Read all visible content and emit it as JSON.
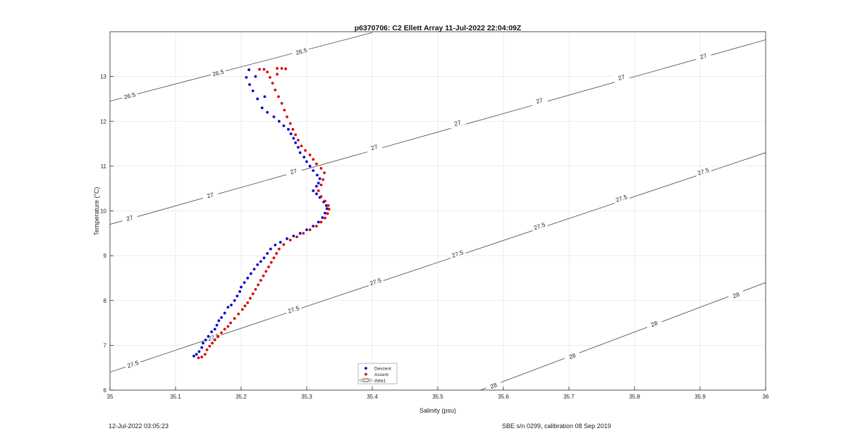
{
  "chart_data": {
    "type": "scatter",
    "title": "p6370706: C2 Ellett Array 11-Jul-2022 22:04:09Z",
    "xlabel": "Salinity (psu)",
    "ylabel": "Temperature (°C)",
    "xlim": [
      35,
      36
    ],
    "ylim": [
      6,
      14
    ],
    "xticks": [
      35,
      35.1,
      35.2,
      35.3,
      35.4,
      35.5,
      35.6,
      35.7,
      35.8,
      35.9,
      36
    ],
    "xtick_labels": [
      "35",
      "35.1",
      "35.2",
      "35.3",
      "35.4",
      "35.5",
      "35.6",
      "35.7",
      "35.8",
      "35.9",
      "36"
    ],
    "yticks": [
      6,
      7,
      8,
      9,
      10,
      11,
      12,
      13
    ],
    "ytick_labels": [
      "6",
      "7",
      "8",
      "9",
      "10",
      "11",
      "12",
      "13"
    ],
    "grid": true,
    "legend_position": "bottom-center",
    "series": [
      {
        "name": "Descent",
        "color": "#0000cc",
        "marker": "dot",
        "points": [
          [
            35.128,
            6.76
          ],
          [
            35.132,
            6.8
          ],
          [
            35.136,
            6.86
          ],
          [
            35.14,
            6.95
          ],
          [
            35.142,
            7.05
          ],
          [
            35.146,
            7.12
          ],
          [
            35.15,
            7.2
          ],
          [
            35.155,
            7.3
          ],
          [
            35.16,
            7.36
          ],
          [
            35.163,
            7.45
          ],
          [
            35.166,
            7.55
          ],
          [
            35.17,
            7.62
          ],
          [
            35.175,
            7.72
          ],
          [
            35.18,
            7.85
          ],
          [
            35.185,
            7.9
          ],
          [
            35.19,
            8.0
          ],
          [
            35.194,
            8.1
          ],
          [
            35.198,
            8.2
          ],
          [
            35.2,
            8.3
          ],
          [
            35.205,
            8.4
          ],
          [
            35.21,
            8.5
          ],
          [
            35.215,
            8.6
          ],
          [
            35.22,
            8.7
          ],
          [
            35.225,
            8.8
          ],
          [
            35.23,
            8.87
          ],
          [
            35.235,
            8.95
          ],
          [
            35.24,
            9.05
          ],
          [
            35.245,
            9.15
          ],
          [
            35.252,
            9.24
          ],
          [
            35.26,
            9.3
          ],
          [
            35.27,
            9.38
          ],
          [
            35.28,
            9.44
          ],
          [
            35.29,
            9.5
          ],
          [
            35.3,
            9.58
          ],
          [
            35.31,
            9.66
          ],
          [
            35.318,
            9.75
          ],
          [
            35.324,
            9.85
          ],
          [
            35.328,
            9.95
          ],
          [
            35.331,
            10.05
          ],
          [
            35.33,
            10.12
          ],
          [
            35.326,
            10.2
          ],
          [
            35.32,
            10.3
          ],
          [
            35.315,
            10.38
          ],
          [
            35.31,
            10.45
          ],
          [
            35.315,
            10.55
          ],
          [
            35.318,
            10.62
          ],
          [
            35.32,
            10.72
          ],
          [
            35.316,
            10.8
          ],
          [
            35.31,
            10.9
          ],
          [
            35.305,
            11.0
          ],
          [
            35.3,
            11.1
          ],
          [
            35.296,
            11.2
          ],
          [
            35.29,
            11.3
          ],
          [
            35.287,
            11.42
          ],
          [
            35.283,
            11.52
          ],
          [
            35.28,
            11.62
          ],
          [
            35.276,
            11.72
          ],
          [
            35.272,
            11.82
          ],
          [
            35.265,
            11.9
          ],
          [
            35.258,
            12.0
          ],
          [
            35.25,
            12.1
          ],
          [
            35.24,
            12.2
          ],
          [
            35.232,
            12.3
          ],
          [
            35.225,
            12.5
          ],
          [
            35.218,
            12.68
          ],
          [
            35.213,
            12.82
          ],
          [
            35.208,
            12.98
          ],
          [
            35.212,
            13.15
          ],
          [
            35.222,
            13.0
          ],
          [
            35.236,
            12.55
          ]
        ]
      },
      {
        "name": "Ascent",
        "color": "#dd0000",
        "marker": "dot",
        "points": [
          [
            35.135,
            6.72
          ],
          [
            35.14,
            6.74
          ],
          [
            35.145,
            6.8
          ],
          [
            35.148,
            6.9
          ],
          [
            35.152,
            6.98
          ],
          [
            35.156,
            7.05
          ],
          [
            35.16,
            7.12
          ],
          [
            35.165,
            7.2
          ],
          [
            35.17,
            7.28
          ],
          [
            35.175,
            7.36
          ],
          [
            35.18,
            7.42
          ],
          [
            35.184,
            7.5
          ],
          [
            35.19,
            7.6
          ],
          [
            35.196,
            7.7
          ],
          [
            35.202,
            7.8
          ],
          [
            35.206,
            7.88
          ],
          [
            35.21,
            7.95
          ],
          [
            35.214,
            8.05
          ],
          [
            35.218,
            8.15
          ],
          [
            35.222,
            8.25
          ],
          [
            35.226,
            8.35
          ],
          [
            35.23,
            8.45
          ],
          [
            35.234,
            8.55
          ],
          [
            35.238,
            8.65
          ],
          [
            35.242,
            8.75
          ],
          [
            35.246,
            8.85
          ],
          [
            35.25,
            8.95
          ],
          [
            35.254,
            9.05
          ],
          [
            35.258,
            9.15
          ],
          [
            35.265,
            9.25
          ],
          [
            35.275,
            9.35
          ],
          [
            35.285,
            9.42
          ],
          [
            35.295,
            9.5
          ],
          [
            35.305,
            9.58
          ],
          [
            35.315,
            9.66
          ],
          [
            35.322,
            9.75
          ],
          [
            35.328,
            9.84
          ],
          [
            35.332,
            9.94
          ],
          [
            35.334,
            10.04
          ],
          [
            35.333,
            10.12
          ],
          [
            35.328,
            10.22
          ],
          [
            35.322,
            10.32
          ],
          [
            35.318,
            10.45
          ],
          [
            35.322,
            10.58
          ],
          [
            35.325,
            10.7
          ],
          [
            35.327,
            10.85
          ],
          [
            35.322,
            10.95
          ],
          [
            35.315,
            11.05
          ],
          [
            35.31,
            11.15
          ],
          [
            35.305,
            11.25
          ],
          [
            35.298,
            11.35
          ],
          [
            35.292,
            11.45
          ],
          [
            35.287,
            11.58
          ],
          [
            35.283,
            11.7
          ],
          [
            35.279,
            11.82
          ],
          [
            35.275,
            11.95
          ],
          [
            35.27,
            12.1
          ],
          [
            35.266,
            12.25
          ],
          [
            35.262,
            12.4
          ],
          [
            35.257,
            12.55
          ],
          [
            35.252,
            12.7
          ],
          [
            35.248,
            12.85
          ],
          [
            35.244,
            12.98
          ],
          [
            35.24,
            13.1
          ],
          [
            35.235,
            13.16
          ],
          [
            35.228,
            13.16
          ],
          [
            35.255,
            13.18
          ],
          [
            35.262,
            13.18
          ],
          [
            35.268,
            13.17
          ],
          [
            35.255,
            13.05
          ]
        ]
      }
    ],
    "legend": {
      "entries": [
        "Descent",
        "Ascent",
        "data1"
      ]
    },
    "isopycnals": [
      {
        "label": "26.5",
        "points": [
          [
            35,
            12.45
          ],
          [
            35.4,
            13.98
          ]
        ],
        "label_positions": [
          [
            35.03,
            12.57
          ],
          [
            35.165,
            13.08
          ],
          [
            35.29,
            13.55
          ],
          [
            35.292,
            13.56
          ]
        ]
      },
      {
        "label": "27",
        "points": [
          [
            35,
            9.7
          ],
          [
            36,
            13.82
          ]
        ],
        "label_positions": [
          [
            35.03,
            9.84
          ],
          [
            35.153,
            10.35
          ],
          [
            35.28,
            10.88
          ],
          [
            35.403,
            11.42
          ],
          [
            35.53,
            11.96
          ],
          [
            35.655,
            12.46
          ],
          [
            35.78,
            12.98
          ],
          [
            35.905,
            13.45
          ]
        ]
      },
      {
        "label": "27.5",
        "points": [
          [
            35,
            6.4
          ],
          [
            36,
            11.3
          ]
        ],
        "label_positions": [
          [
            35.035,
            6.58
          ],
          [
            35.158,
            7.18
          ],
          [
            35.28,
            7.8
          ],
          [
            35.405,
            8.42
          ],
          [
            35.53,
            9.04
          ],
          [
            35.655,
            9.66
          ],
          [
            35.78,
            10.28
          ],
          [
            35.905,
            10.88
          ]
        ]
      },
      {
        "label": "28",
        "points": [
          [
            35.565,
            6.0
          ],
          [
            36,
            8.4
          ]
        ],
        "label_positions": [
          [
            35.585,
            6.1
          ],
          [
            35.705,
            6.76
          ],
          [
            35.83,
            7.48
          ],
          [
            35.955,
            8.12
          ]
        ]
      }
    ]
  },
  "footer": {
    "timestamp": "12-Jul-2022 03:05:23",
    "calibration": "SBE s/n 0299, calibration 08 Sep 2019"
  }
}
